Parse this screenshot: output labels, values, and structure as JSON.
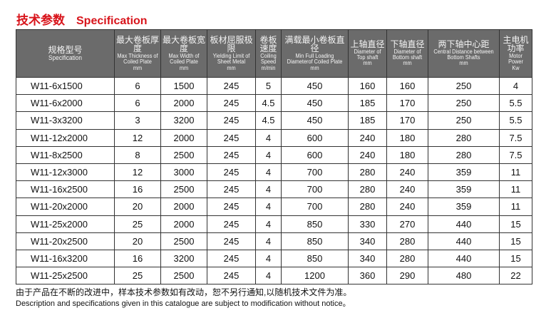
{
  "title": {
    "zh": "技术参数",
    "en": "Specification"
  },
  "columns": [
    {
      "zh": "规格型号",
      "en": "Specification",
      "unit": ""
    },
    {
      "zh": "最大卷板厚度",
      "en": "Max Thickness of Coiled Plate",
      "unit": "mm"
    },
    {
      "zh": "最大卷板宽度",
      "en": "Max Width of Coiled Plate",
      "unit": "mm"
    },
    {
      "zh": "板材屈服极限",
      "en": "Yielding Limit of Sheet Metal",
      "unit": "mm"
    },
    {
      "zh": "卷板速度",
      "en": "Coiling Speed",
      "unit": "m/min"
    },
    {
      "zh": "满载最小卷板直径",
      "en": "Min Full Loading Diameterof Coiled Plate",
      "unit": "mm"
    },
    {
      "zh": "上轴直径",
      "en": "Diameter of Top shaft",
      "unit": "mm"
    },
    {
      "zh": "下轴直径",
      "en": "Diameter of Bottom shaft",
      "unit": "mm"
    },
    {
      "zh": "两下轴中心距",
      "en": "Central Distance between Bottom Shafts",
      "unit": "mm"
    },
    {
      "zh": "主电机功率",
      "en": "Motor Power",
      "unit": "Kw"
    }
  ],
  "rows": [
    [
      "W11-6x1500",
      "6",
      "1500",
      "245",
      "5",
      "450",
      "160",
      "160",
      "250",
      "4"
    ],
    [
      "W11-6x2000",
      "6",
      "2000",
      "245",
      "4.5",
      "450",
      "185",
      "170",
      "250",
      "5.5"
    ],
    [
      "W11-3x3200",
      "3",
      "3200",
      "245",
      "4.5",
      "450",
      "185",
      "170",
      "250",
      "5.5"
    ],
    [
      "W11-12x2000",
      "12",
      "2000",
      "245",
      "4",
      "600",
      "240",
      "180",
      "280",
      "7.5"
    ],
    [
      "W11-8x2500",
      "8",
      "2500",
      "245",
      "4",
      "600",
      "240",
      "180",
      "280",
      "7.5"
    ],
    [
      "W11-12x3000",
      "12",
      "3000",
      "245",
      "4",
      "700",
      "280",
      "240",
      "359",
      "11"
    ],
    [
      "W11-16x2500",
      "16",
      "2500",
      "245",
      "4",
      "700",
      "280",
      "240",
      "359",
      "11"
    ],
    [
      "W11-20x2000",
      "20",
      "2000",
      "245",
      "4",
      "700",
      "280",
      "240",
      "359",
      "11"
    ],
    [
      "W11-25x2000",
      "25",
      "2000",
      "245",
      "4",
      "850",
      "330",
      "270",
      "440",
      "15"
    ],
    [
      "W11-20x2500",
      "20",
      "2500",
      "245",
      "4",
      "850",
      "340",
      "280",
      "440",
      "15"
    ],
    [
      "W11-16x3200",
      "16",
      "3200",
      "245",
      "4",
      "850",
      "340",
      "280",
      "440",
      "15"
    ],
    [
      "W11-25x2500",
      "25",
      "2500",
      "245",
      "4",
      "1200",
      "360",
      "290",
      "480",
      "22"
    ]
  ],
  "footer": {
    "zh": "由于产品在不断的改进中，样本技术参数如有改动，恕不另行通知,以随机技术文件为准。",
    "en": "Description and specifications given in this catalogue are subject to modification without notice。"
  }
}
